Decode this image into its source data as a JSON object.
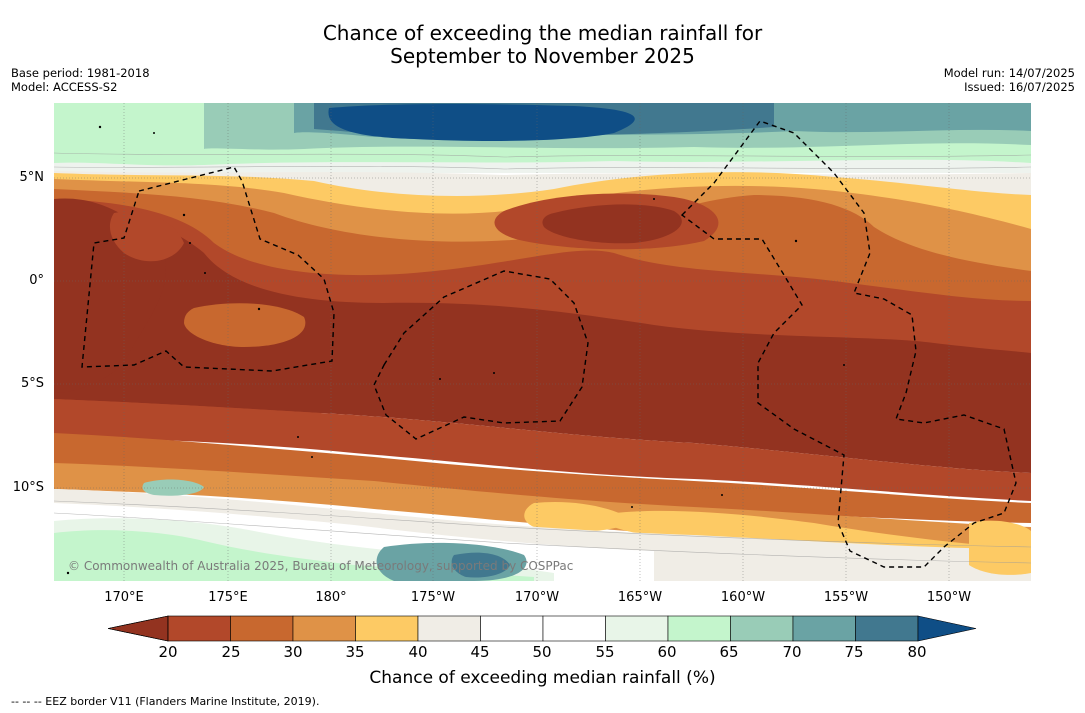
{
  "title": {
    "line1": "Chance of exceeding the median rainfall for",
    "line2": "September to November 2025"
  },
  "meta": {
    "base_period": "Base period: 1981-2018",
    "model": "Model: ACCESS-S2",
    "model_run": "Model run: 14/07/2025",
    "issued": "Issued: 16/07/2025"
  },
  "latitude_labels": [
    "5°N",
    "0°",
    "5°S",
    "10°S"
  ],
  "longitude_labels": [
    "170°E",
    "175°E",
    "180°",
    "175°W",
    "170°W",
    "165°W",
    "160°W",
    "155°W",
    "150°W"
  ],
  "copyright": "© Commonwealth of Australia 2025, Bureau of Meteorology, supported by COSPPac",
  "colorbar": {
    "label": "Chance of exceeding median rainfall (%)",
    "ticks": [
      "20",
      "25",
      "30",
      "35",
      "40",
      "45",
      "50",
      "55",
      "60",
      "65",
      "70",
      "75",
      "80"
    ],
    "colors": [
      "#933320",
      "#b2482a",
      "#c8682f",
      "#df9247",
      "#fdca64",
      "#f0ede6",
      "#ffffff",
      "#ffffff",
      "#e8f5e8",
      "#c4f5cc",
      "#99ccb7",
      "#6aa3a4",
      "#41788f",
      "#0f4e86"
    ]
  },
  "eez_note": "--  --  -- EEZ border V11 (Flanders Marine Institute, 2019)."
}
